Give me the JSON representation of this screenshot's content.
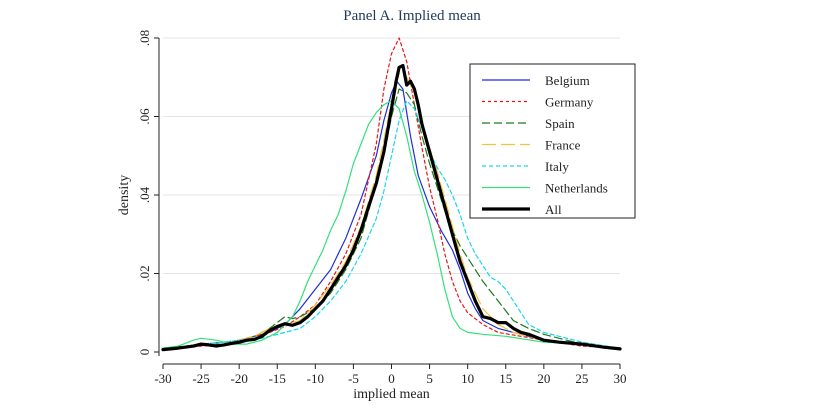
{
  "chart_data": {
    "type": "line",
    "title": "Panel A. Implied mean",
    "xlabel": "implied mean",
    "ylabel": "density",
    "xlim": [
      -30,
      30
    ],
    "ylim": [
      0,
      0.08
    ],
    "x_ticks": [
      -30,
      -25,
      -20,
      -15,
      -10,
      -5,
      0,
      5,
      10,
      15,
      20,
      25,
      30
    ],
    "x_tick_labels": [
      "-30",
      "-25",
      "-20",
      "-15",
      "-10",
      "-5",
      "0",
      "5",
      "10",
      "15",
      "20",
      "25",
      "30"
    ],
    "y_ticks": [
      0,
      0.02,
      0.04,
      0.06,
      0.08
    ],
    "y_tick_labels": [
      "0",
      ".02",
      ".04",
      ".06",
      ".08"
    ],
    "grid": "horizontal",
    "legend_position": "top-right",
    "series": [
      {
        "name": "Belgium",
        "color": "#1f2fd6",
        "dash": "solid",
        "width": 1.2,
        "points": [
          [
            -30,
            0.0008
          ],
          [
            -27,
            0.0012
          ],
          [
            -25,
            0.0018
          ],
          [
            -22,
            0.002
          ],
          [
            -20,
            0.003
          ],
          [
            -18,
            0.004
          ],
          [
            -16,
            0.005
          ],
          [
            -14,
            0.007
          ],
          [
            -13,
            0.009
          ],
          [
            -12,
            0.011
          ],
          [
            -10,
            0.016
          ],
          [
            -8,
            0.021
          ],
          [
            -6,
            0.029
          ],
          [
            -4,
            0.039
          ],
          [
            -2,
            0.05
          ],
          [
            -1,
            0.059
          ],
          [
            0,
            0.066
          ],
          [
            0.7,
            0.069
          ],
          [
            1.5,
            0.067
          ],
          [
            2.5,
            0.055
          ],
          [
            3.5,
            0.045
          ],
          [
            5,
            0.037
          ],
          [
            6.5,
            0.031
          ],
          [
            8,
            0.026
          ],
          [
            9,
            0.021
          ],
          [
            10,
            0.015
          ],
          [
            11,
            0.011
          ],
          [
            12,
            0.008
          ],
          [
            14,
            0.006
          ],
          [
            16,
            0.005
          ],
          [
            18,
            0.004
          ],
          [
            20,
            0.003
          ],
          [
            25,
            0.002
          ],
          [
            30,
            0.001
          ]
        ]
      },
      {
        "name": "Germany",
        "color": "#e8141a",
        "dash": "3,3",
        "width": 1.2,
        "points": [
          [
            -30,
            0.0008
          ],
          [
            -27,
            0.0012
          ],
          [
            -25,
            0.0015
          ],
          [
            -22,
            0.002
          ],
          [
            -20,
            0.003
          ],
          [
            -18,
            0.004
          ],
          [
            -16,
            0.005
          ],
          [
            -14,
            0.0065
          ],
          [
            -12,
            0.009
          ],
          [
            -10,
            0.012
          ],
          [
            -8,
            0.018
          ],
          [
            -6,
            0.025
          ],
          [
            -4,
            0.035
          ],
          [
            -2,
            0.053
          ],
          [
            -1,
            0.067
          ],
          [
            0,
            0.076
          ],
          [
            1,
            0.08
          ],
          [
            2,
            0.074
          ],
          [
            3,
            0.063
          ],
          [
            4,
            0.052
          ],
          [
            5,
            0.042
          ],
          [
            6,
            0.034
          ],
          [
            7,
            0.025
          ],
          [
            8,
            0.018
          ],
          [
            9,
            0.013
          ],
          [
            10,
            0.01
          ],
          [
            12,
            0.007
          ],
          [
            14,
            0.005
          ],
          [
            17,
            0.004
          ],
          [
            20,
            0.003
          ],
          [
            25,
            0.0015
          ],
          [
            30,
            0.001
          ]
        ]
      },
      {
        "name": "Spain",
        "color": "#1c7a1c",
        "dash": "8,4",
        "width": 1.2,
        "points": [
          [
            -30,
            0.001
          ],
          [
            -27,
            0.0015
          ],
          [
            -25,
            0.002
          ],
          [
            -22,
            0.0025
          ],
          [
            -20,
            0.003
          ],
          [
            -18,
            0.004
          ],
          [
            -16,
            0.006
          ],
          [
            -14,
            0.009
          ],
          [
            -13,
            0.0085
          ],
          [
            -12,
            0.009
          ],
          [
            -10,
            0.011
          ],
          [
            -8,
            0.015
          ],
          [
            -6,
            0.021
          ],
          [
            -4,
            0.029
          ],
          [
            -2,
            0.043
          ],
          [
            -1,
            0.05
          ],
          [
            0,
            0.06
          ],
          [
            1,
            0.067
          ],
          [
            2,
            0.066
          ],
          [
            3,
            0.063
          ],
          [
            4,
            0.055
          ],
          [
            5,
            0.048
          ],
          [
            6,
            0.042
          ],
          [
            7,
            0.036
          ],
          [
            8,
            0.031
          ],
          [
            9,
            0.027
          ],
          [
            10,
            0.024
          ],
          [
            11,
            0.021
          ],
          [
            12,
            0.018
          ],
          [
            14,
            0.013
          ],
          [
            16,
            0.008
          ],
          [
            18,
            0.006
          ],
          [
            20,
            0.0045
          ],
          [
            25,
            0.002
          ],
          [
            30,
            0.001
          ]
        ]
      },
      {
        "name": "France",
        "color": "#f2c23a",
        "dash": "14,5",
        "width": 1.2,
        "points": [
          [
            -30,
            0.0008
          ],
          [
            -27,
            0.0012
          ],
          [
            -25,
            0.0018
          ],
          [
            -22,
            0.002
          ],
          [
            -20,
            0.003
          ],
          [
            -18,
            0.004
          ],
          [
            -16,
            0.006
          ],
          [
            -14,
            0.007
          ],
          [
            -12,
            0.008
          ],
          [
            -10,
            0.012
          ],
          [
            -8,
            0.017
          ],
          [
            -6,
            0.023
          ],
          [
            -4,
            0.032
          ],
          [
            -2,
            0.045
          ],
          [
            -1,
            0.054
          ],
          [
            0,
            0.064
          ],
          [
            1,
            0.071
          ],
          [
            2,
            0.07
          ],
          [
            3,
            0.066
          ],
          [
            4,
            0.058
          ],
          [
            5,
            0.052
          ],
          [
            6,
            0.046
          ],
          [
            7,
            0.039
          ],
          [
            8,
            0.032
          ],
          [
            9,
            0.025
          ],
          [
            10,
            0.019
          ],
          [
            11,
            0.015
          ],
          [
            12,
            0.011
          ],
          [
            14,
            0.007
          ],
          [
            16,
            0.005
          ],
          [
            18,
            0.004
          ],
          [
            20,
            0.003
          ],
          [
            25,
            0.002
          ],
          [
            30,
            0.001
          ]
        ]
      },
      {
        "name": "Italy",
        "color": "#19d6ee",
        "dash": "4,3",
        "width": 1.2,
        "points": [
          [
            -30,
            0.0008
          ],
          [
            -27,
            0.0012
          ],
          [
            -25,
            0.002
          ],
          [
            -22,
            0.0025
          ],
          [
            -20,
            0.003
          ],
          [
            -18,
            0.003
          ],
          [
            -16,
            0.004
          ],
          [
            -14,
            0.005
          ],
          [
            -12,
            0.006
          ],
          [
            -10,
            0.009
          ],
          [
            -8,
            0.013
          ],
          [
            -6,
            0.018
          ],
          [
            -4,
            0.025
          ],
          [
            -2,
            0.034
          ],
          [
            -1,
            0.041
          ],
          [
            0,
            0.05
          ],
          [
            1,
            0.059
          ],
          [
            2,
            0.064
          ],
          [
            3,
            0.062
          ],
          [
            4,
            0.057
          ],
          [
            5,
            0.051
          ],
          [
            6,
            0.047
          ],
          [
            7,
            0.044
          ],
          [
            8,
            0.04
          ],
          [
            9,
            0.035
          ],
          [
            10,
            0.029
          ],
          [
            11,
            0.025
          ],
          [
            12,
            0.022
          ],
          [
            13,
            0.019
          ],
          [
            14,
            0.018
          ],
          [
            15,
            0.016
          ],
          [
            16,
            0.013
          ],
          [
            17,
            0.01
          ],
          [
            18,
            0.007
          ],
          [
            20,
            0.005
          ],
          [
            22,
            0.004
          ],
          [
            25,
            0.0025
          ],
          [
            30,
            0.001
          ]
        ]
      },
      {
        "name": "Netherlands",
        "color": "#33e07a",
        "dash": "solid",
        "width": 1.2,
        "points": [
          [
            -30,
            0.001
          ],
          [
            -28,
            0.0015
          ],
          [
            -26,
            0.003
          ],
          [
            -25,
            0.0035
          ],
          [
            -23,
            0.003
          ],
          [
            -21,
            0.002
          ],
          [
            -19,
            0.002
          ],
          [
            -17,
            0.003
          ],
          [
            -15,
            0.005
          ],
          [
            -13,
            0.009
          ],
          [
            -12,
            0.013
          ],
          [
            -11,
            0.018
          ],
          [
            -10,
            0.022
          ],
          [
            -9,
            0.026
          ],
          [
            -8,
            0.031
          ],
          [
            -7,
            0.035
          ],
          [
            -6,
            0.041
          ],
          [
            -5,
            0.048
          ],
          [
            -4,
            0.053
          ],
          [
            -3,
            0.058
          ],
          [
            -2,
            0.061
          ],
          [
            -1,
            0.063
          ],
          [
            0,
            0.064
          ],
          [
            1,
            0.062
          ],
          [
            2,
            0.055
          ],
          [
            3,
            0.046
          ],
          [
            4,
            0.04
          ],
          [
            5,
            0.033
          ],
          [
            6,
            0.025
          ],
          [
            7,
            0.016
          ],
          [
            8,
            0.009
          ],
          [
            9,
            0.006
          ],
          [
            10,
            0.005
          ],
          [
            12,
            0.0045
          ],
          [
            15,
            0.004
          ],
          [
            20,
            0.0025
          ],
          [
            25,
            0.002
          ],
          [
            30,
            0.001
          ]
        ]
      },
      {
        "name": "All",
        "color": "#000000",
        "dash": "solid",
        "width": 3.2,
        "points": [
          [
            -30,
            0.0006
          ],
          [
            -28,
            0.001
          ],
          [
            -26,
            0.0015
          ],
          [
            -25,
            0.002
          ],
          [
            -24,
            0.0018
          ],
          [
            -23,
            0.0015
          ],
          [
            -22,
            0.0018
          ],
          [
            -21,
            0.0022
          ],
          [
            -20,
            0.0025
          ],
          [
            -19,
            0.003
          ],
          [
            -18,
            0.0032
          ],
          [
            -17,
            0.004
          ],
          [
            -16,
            0.0055
          ],
          [
            -15,
            0.0065
          ],
          [
            -14,
            0.0072
          ],
          [
            -13,
            0.0068
          ],
          [
            -12,
            0.0075
          ],
          [
            -11,
            0.009
          ],
          [
            -10,
            0.011
          ],
          [
            -9,
            0.013
          ],
          [
            -8,
            0.016
          ],
          [
            -7,
            0.019
          ],
          [
            -6,
            0.022
          ],
          [
            -5,
            0.026
          ],
          [
            -4,
            0.031
          ],
          [
            -3,
            0.037
          ],
          [
            -2,
            0.043
          ],
          [
            -1,
            0.051
          ],
          [
            0,
            0.062
          ],
          [
            0.6,
            0.069
          ],
          [
            1,
            0.0725
          ],
          [
            1.5,
            0.073
          ],
          [
            2,
            0.068
          ],
          [
            2.5,
            0.069
          ],
          [
            3,
            0.067
          ],
          [
            3.5,
            0.063
          ],
          [
            4,
            0.058
          ],
          [
            5,
            0.051
          ],
          [
            6,
            0.044
          ],
          [
            7,
            0.037
          ],
          [
            8,
            0.03
          ],
          [
            9,
            0.023
          ],
          [
            10,
            0.018
          ],
          [
            11,
            0.013
          ],
          [
            12,
            0.009
          ],
          [
            13,
            0.0085
          ],
          [
            14,
            0.0075
          ],
          [
            15,
            0.0075
          ],
          [
            16,
            0.006
          ],
          [
            17,
            0.005
          ],
          [
            18,
            0.0045
          ],
          [
            20,
            0.003
          ],
          [
            22,
            0.0025
          ],
          [
            25,
            0.002
          ],
          [
            28,
            0.0012
          ],
          [
            30,
            0.0008
          ]
        ]
      }
    ]
  }
}
